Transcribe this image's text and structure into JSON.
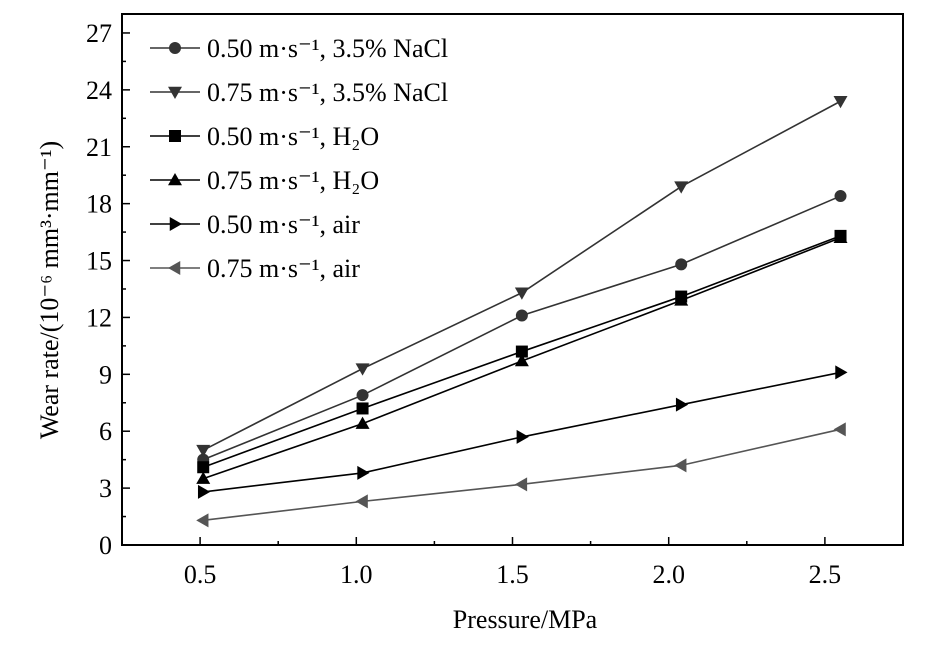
{
  "chart_data": {
    "type": "line",
    "xlabel": "Pressure/MPa",
    "ylabel": "Wear rate/(10⁻⁶ mm³·mm⁻¹)",
    "xlim": [
      0.25,
      2.75
    ],
    "ylim": [
      0,
      28
    ],
    "xticks": [
      0.5,
      1.0,
      1.5,
      2.0,
      2.5
    ],
    "xtick_labels": [
      "0.5",
      "1.0",
      "1.5",
      "2.0",
      "2.5"
    ],
    "yticks": [
      0,
      3,
      6,
      9,
      12,
      15,
      18,
      21,
      24,
      27
    ],
    "ytick_labels": [
      "0",
      "3",
      "6",
      "9",
      "12",
      "15",
      "18",
      "21",
      "24",
      "27"
    ],
    "grid": false,
    "legend_position": "top-left",
    "series": [
      {
        "name": "0.50 m·s⁻¹, 3.5% NaCl",
        "marker": "circle",
        "color": "#333333",
        "x": [
          0.51,
          1.02,
          1.53,
          2.04,
          2.55
        ],
        "y": [
          4.5,
          7.9,
          12.1,
          14.8,
          18.4
        ]
      },
      {
        "name": "0.75 m·s⁻¹, 3.5% NaCl",
        "marker": "triangle-down",
        "color": "#333333",
        "x": [
          0.51,
          1.02,
          1.53,
          2.04,
          2.55
        ],
        "y": [
          5.0,
          9.3,
          13.3,
          18.9,
          23.4
        ]
      },
      {
        "name": "0.50 m·s⁻¹, H₂O",
        "marker": "square",
        "color": "#000000",
        "x": [
          0.51,
          1.02,
          1.53,
          2.04,
          2.55
        ],
        "y": [
          4.1,
          7.2,
          10.2,
          13.1,
          16.3
        ]
      },
      {
        "name": "0.75 m·s⁻¹, H₂O",
        "marker": "triangle-up",
        "color": "#000000",
        "x": [
          0.51,
          1.02,
          1.53,
          2.04,
          2.55
        ],
        "y": [
          3.5,
          6.4,
          9.7,
          12.9,
          16.2
        ]
      },
      {
        "name": "0.50 m·s⁻¹, air",
        "marker": "triangle-right",
        "color": "#000000",
        "x": [
          0.51,
          1.02,
          1.53,
          2.04,
          2.55
        ],
        "y": [
          2.8,
          3.8,
          5.7,
          7.4,
          9.1
        ]
      },
      {
        "name": "0.75 m·s⁻¹, air",
        "marker": "triangle-left",
        "color": "#555555",
        "x": [
          0.51,
          1.02,
          1.53,
          2.04,
          2.55
        ],
        "y": [
          1.3,
          2.3,
          3.2,
          4.2,
          6.1
        ]
      }
    ]
  }
}
